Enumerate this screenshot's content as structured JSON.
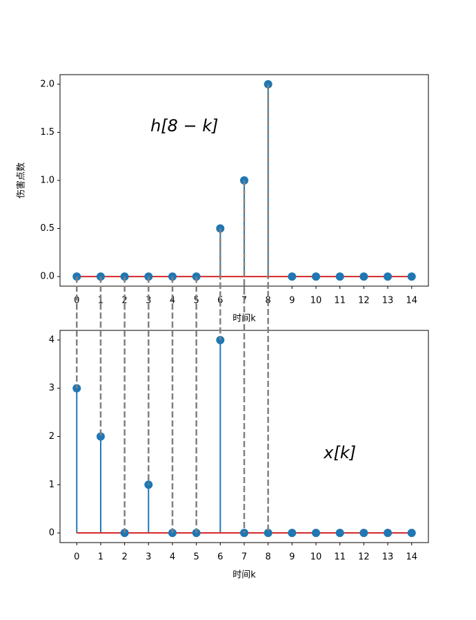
{
  "chart_data": [
    {
      "type": "stem",
      "annotation": "h[8 − k]",
      "xlabel": "时间k",
      "ylabel": "伤害点数",
      "x": [
        0,
        1,
        2,
        3,
        4,
        5,
        6,
        7,
        8,
        9,
        10,
        11,
        12,
        13,
        14
      ],
      "values": [
        0,
        0,
        0,
        0,
        0,
        0,
        0.5,
        1,
        2,
        0,
        0,
        0,
        0,
        0,
        0
      ],
      "color": "#1f77b4",
      "baseline_color": "#d62728",
      "xlim": [
        -0.7,
        14.7
      ],
      "xticks": [
        0,
        1,
        2,
        3,
        4,
        5,
        6,
        7,
        8,
        9,
        10,
        11,
        12,
        13,
        14
      ],
      "ylim": [
        -0.1,
        2.1
      ],
      "yticks": [
        {
          "value": 0,
          "label": "0.0"
        },
        0.5,
        {
          "value": 1,
          "label": "1.0"
        },
        1.5,
        {
          "value": 2,
          "label": "2.0"
        }
      ],
      "guide_x": [
        0,
        1,
        2,
        3,
        4,
        5,
        6,
        7,
        8
      ],
      "guide_color": "#808080"
    },
    {
      "type": "stem",
      "annotation": "x[k]",
      "xlabel": "时间k",
      "x": [
        0,
        1,
        2,
        3,
        4,
        5,
        6,
        7,
        8,
        9,
        10,
        11,
        12,
        13,
        14
      ],
      "values": [
        3,
        2,
        0,
        1,
        0,
        0,
        4,
        0,
        0,
        0,
        0,
        0,
        0,
        0,
        0
      ],
      "color": "#1f77b4",
      "baseline_color": "#d62728",
      "xlim": [
        -0.7,
        14.7
      ],
      "xticks": [
        0,
        1,
        2,
        3,
        4,
        5,
        6,
        7,
        8,
        9,
        10,
        11,
        12,
        13,
        14
      ],
      "ylim": [
        -0.2,
        4.2
      ],
      "yticks": [
        0,
        1,
        2,
        3,
        4
      ]
    }
  ]
}
